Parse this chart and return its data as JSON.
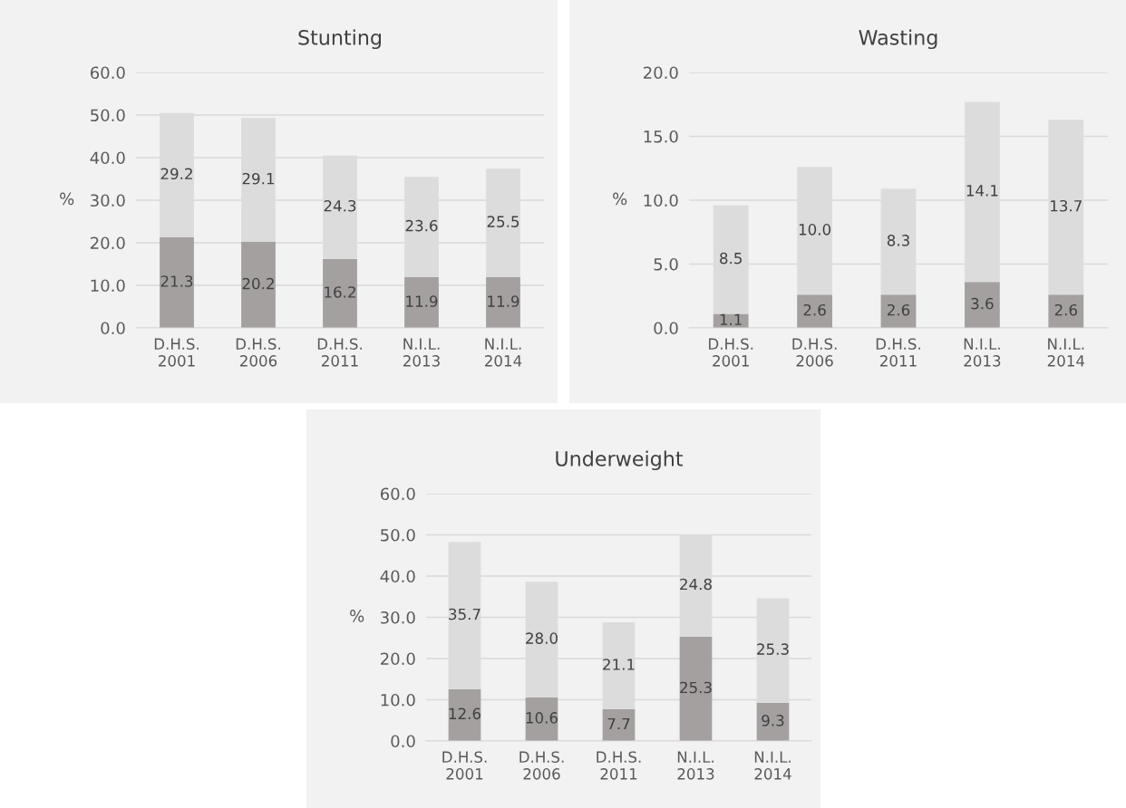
{
  "chart_data": [
    {
      "type": "bar",
      "title": "Stunting",
      "ylabel": "%",
      "stacked": true,
      "grid": "y",
      "legend": false,
      "categories": [
        "D.H.S.\n2001",
        "D.H.S.\n2006",
        "D.H.S.\n2011",
        "N.I.L.\n2013",
        "N.I.L.\n2014"
      ],
      "series": [
        {
          "color": "#a5a0a0",
          "values": [
            21.3,
            20.2,
            16.2,
            11.9,
            11.9
          ],
          "value_labels": [
            "21.3",
            "20.2",
            "16.2",
            "11.9",
            "11.9"
          ]
        },
        {
          "color": "#dcdcdc",
          "values": [
            29.2,
            29.1,
            24.3,
            23.6,
            25.5
          ],
          "value_labels": [
            "29.2",
            "29.1",
            "24.3",
            "23.6",
            "25.5"
          ]
        }
      ],
      "ylim": [
        0,
        60
      ],
      "yticks": [
        {
          "value": 0,
          "label": "0.0"
        },
        {
          "value": 10,
          "label": "10.0"
        },
        {
          "value": 20,
          "label": "20.0"
        },
        {
          "value": 30,
          "label": "30.0"
        },
        {
          "value": 40,
          "label": "40.0"
        },
        {
          "value": 50,
          "label": "50.0"
        },
        {
          "value": 60,
          "label": "60.0"
        }
      ]
    },
    {
      "type": "bar",
      "title": "Wasting",
      "ylabel": "%",
      "stacked": true,
      "grid": "y",
      "legend": false,
      "categories": [
        "D.H.S.\n2001",
        "D.H.S.\n2006",
        "D.H.S.\n2011",
        "N.I.L.\n2013",
        "N.I.L.\n2014"
      ],
      "series": [
        {
          "color": "#a5a0a0",
          "values": [
            1.1,
            2.6,
            2.6,
            3.6,
            2.6
          ],
          "value_labels": [
            "1.1",
            "2.6",
            "2.6",
            "3.6",
            "2.6"
          ]
        },
        {
          "color": "#dcdcdc",
          "values": [
            8.5,
            10.0,
            8.3,
            14.1,
            13.7
          ],
          "value_labels": [
            "8.5",
            "10.0",
            "8.3",
            "14.1",
            "13.7"
          ]
        }
      ],
      "ylim": [
        0,
        20
      ],
      "yticks": [
        {
          "value": 0,
          "label": "0.0"
        },
        {
          "value": 5,
          "label": "5.0"
        },
        {
          "value": 10,
          "label": "10.0"
        },
        {
          "value": 15,
          "label": "15.0"
        },
        {
          "value": 20,
          "label": "20.0"
        }
      ]
    },
    {
      "type": "bar",
      "title": "Underweight",
      "ylabel": "%",
      "stacked": true,
      "grid": "y",
      "legend": false,
      "categories": [
        "D.H.S.\n2001",
        "D.H.S.\n2006",
        "D.H.S.\n2011",
        "N.I.L.\n2013",
        "N.I.L.\n2014"
      ],
      "series": [
        {
          "color": "#a5a0a0",
          "values": [
            12.6,
            10.6,
            7.7,
            25.3,
            9.3
          ],
          "value_labels": [
            "12.6",
            "10.6",
            "7.7",
            "25.3",
            "9.3"
          ]
        },
        {
          "color": "#dcdcdc",
          "values": [
            35.7,
            28.0,
            21.1,
            24.8,
            25.3
          ],
          "value_labels": [
            "35.7",
            "28.0",
            "21.1",
            "24.8",
            "25.3"
          ]
        }
      ],
      "ylim": [
        0,
        60
      ],
      "yticks": [
        {
          "value": 0,
          "label": "0.0"
        },
        {
          "value": 10,
          "label": "10.0"
        },
        {
          "value": 20,
          "label": "20.0"
        },
        {
          "value": 30,
          "label": "30.0"
        },
        {
          "value": 40,
          "label": "40.0"
        },
        {
          "value": 50,
          "label": "50.0"
        },
        {
          "value": 60,
          "label": "60.0"
        }
      ]
    }
  ]
}
